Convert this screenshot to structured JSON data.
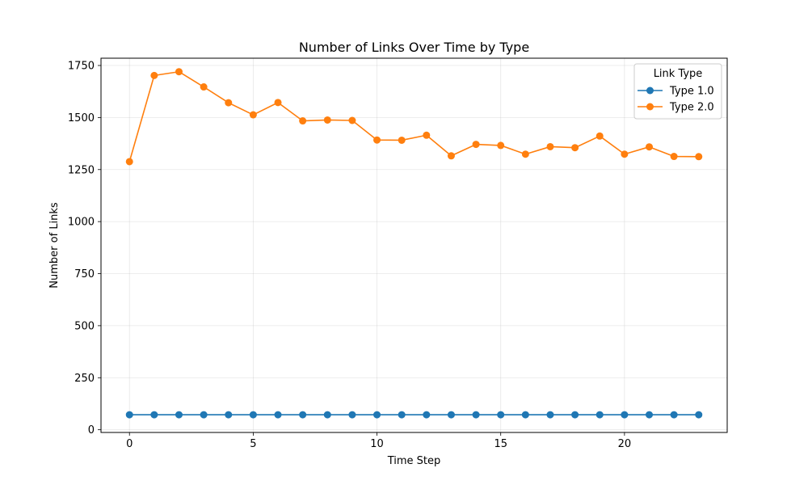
{
  "chart_data": {
    "type": "line",
    "title": "Number of Links Over Time by Type",
    "xlabel": "Time Step",
    "ylabel": "Number of Links",
    "xlim": [
      -1.15,
      24.15
    ],
    "ylim": [
      -13,
      1785
    ],
    "x_ticks": [
      0,
      5,
      10,
      15,
      20
    ],
    "y_ticks": [
      0,
      250,
      500,
      750,
      1000,
      1250,
      1500,
      1750
    ],
    "grid": true,
    "legend_title": "Link Type",
    "legend_position": "top-right",
    "x": [
      0,
      1,
      2,
      3,
      4,
      5,
      6,
      7,
      8,
      9,
      10,
      11,
      12,
      13,
      14,
      15,
      16,
      17,
      18,
      19,
      20,
      21,
      22,
      23
    ],
    "series": [
      {
        "name": "Type 1.0",
        "color": "#1f77b4",
        "values": [
          72,
          72,
          72,
          72,
          72,
          72,
          72,
          72,
          72,
          72,
          72,
          72,
          72,
          72,
          72,
          72,
          72,
          72,
          72,
          72,
          72,
          72,
          72,
          72
        ]
      },
      {
        "name": "Type 2.0",
        "color": "#ff7f0e",
        "values": [
          1288,
          1702,
          1720,
          1647,
          1571,
          1513,
          1572,
          1484,
          1488,
          1486,
          1392,
          1391,
          1415,
          1316,
          1371,
          1366,
          1324,
          1360,
          1355,
          1411,
          1324,
          1359,
          1313,
          1312
        ]
      }
    ]
  }
}
